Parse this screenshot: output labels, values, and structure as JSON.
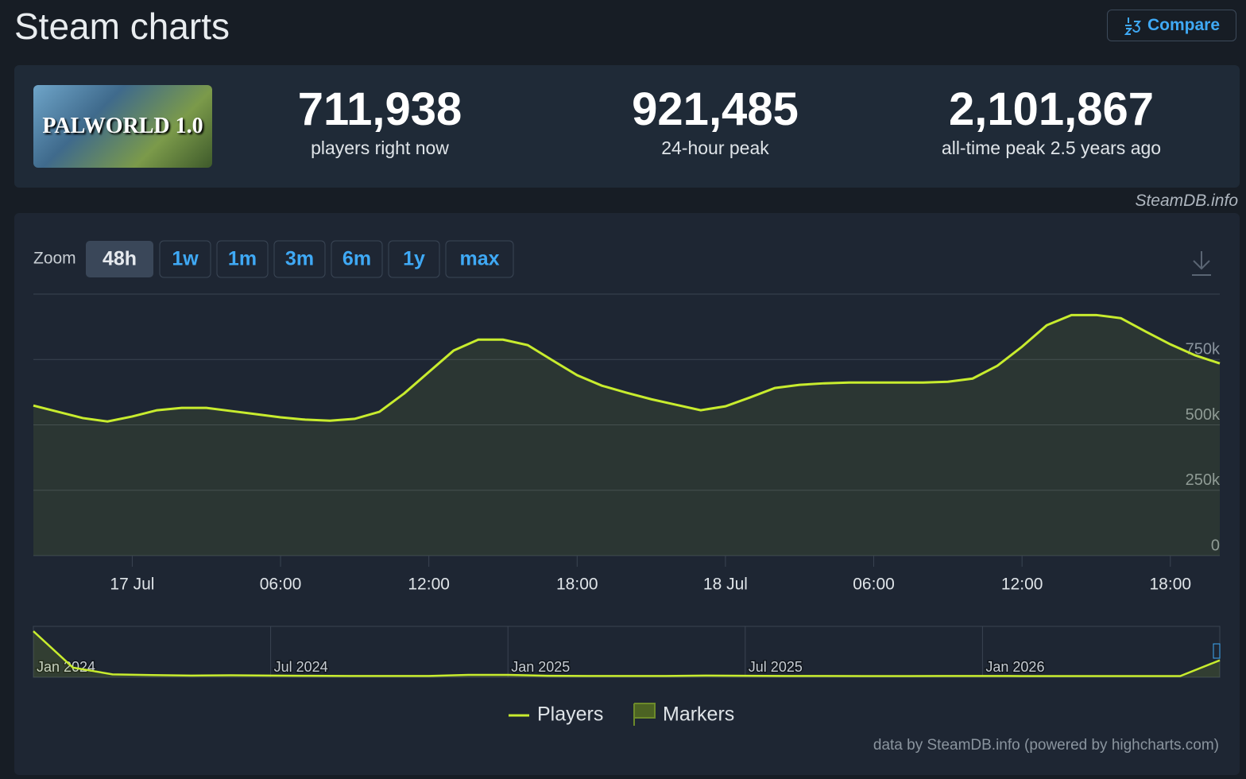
{
  "header": {
    "title": "Steam charts",
    "compare_button": "Compare"
  },
  "game": {
    "image_text": "PALWORLD 1.0"
  },
  "stats": [
    {
      "value": "711,938",
      "label": "players right now"
    },
    {
      "value": "921,485",
      "label": "24-hour peak"
    },
    {
      "value": "2,101,867",
      "label": "all-time peak 2.5 years ago"
    }
  ],
  "credit": "SteamDB.info",
  "zoom": {
    "label": "Zoom",
    "options": [
      "48h",
      "1w",
      "1m",
      "3m",
      "6m",
      "1y",
      "max"
    ],
    "selected": "48h"
  },
  "chart_data": [
    {
      "type": "line",
      "x": [
        -4,
        -3,
        -2,
        -1,
        0,
        1,
        2,
        3,
        4,
        5,
        6,
        7,
        8,
        9,
        10,
        11,
        12,
        13,
        14,
        15,
        16,
        17,
        18,
        19,
        20,
        21,
        22,
        23,
        24,
        25,
        26,
        27,
        28,
        29,
        30,
        31,
        32,
        33,
        34,
        35,
        36,
        37,
        38,
        39,
        40,
        41,
        42,
        43,
        44
      ],
      "series": [
        {
          "name": "Players",
          "color": "#c8ec2e",
          "values": [
            574000,
            550000,
            526000,
            513000,
            532000,
            556000,
            565000,
            565000,
            553000,
            541000,
            529000,
            520000,
            516000,
            523000,
            550000,
            620000,
            702000,
            784000,
            826000,
            826000,
            805000,
            747000,
            690000,
            650000,
            623000,
            598000,
            577000,
            556000,
            571000,
            605000,
            641000,
            653000,
            659000,
            662000,
            662000,
            662000,
            662000,
            665000,
            677000,
            726000,
            799000,
            881000,
            920000,
            920000,
            908000,
            857000,
            808000,
            766000,
            735000
          ]
        }
      ],
      "xlim": [
        -4,
        44
      ],
      "xticks": [
        {
          "value": 0,
          "label": "17 Jul"
        },
        {
          "value": 6,
          "label": "06:00"
        },
        {
          "value": 12,
          "label": "12:00"
        },
        {
          "value": 18,
          "label": "18:00"
        },
        {
          "value": 24,
          "label": "18 Jul"
        },
        {
          "value": 30,
          "label": "06:00"
        },
        {
          "value": 36,
          "label": "12:00"
        },
        {
          "value": 42,
          "label": "18:00"
        }
      ],
      "ylim": [
        0,
        1000000
      ],
      "yticks": [
        0,
        {
          "value": 250000,
          "label": "250k"
        },
        {
          "value": 500000,
          "label": "500k"
        },
        {
          "value": 750000,
          "label": "750k"
        }
      ],
      "grid": true,
      "marker_legend": "Markers",
      "footer": "data by SteamDB.info (powered by highcharts.com)"
    },
    {
      "type": "navigator",
      "categories": [
        "Jan 2024",
        null,
        null,
        null,
        null,
        null,
        "Jul 2024",
        null,
        null,
        null,
        null,
        null,
        "Jan 2025",
        null,
        null,
        null,
        null,
        null,
        "Jul 2025",
        null,
        null,
        null,
        null,
        null,
        "Jan 2026",
        null,
        null,
        null,
        null,
        null,
        null
      ],
      "series": [
        {
          "name": "Players",
          "color": "#c8ec2e",
          "values": [
            1900000,
            400000,
            120000,
            90000,
            70000,
            80000,
            70000,
            60000,
            55000,
            55000,
            55000,
            100000,
            100000,
            60000,
            55000,
            55000,
            55000,
            70000,
            60000,
            55000,
            55000,
            50000,
            50000,
            55000,
            55000,
            50000,
            50000,
            50000,
            50000,
            50000,
            700000
          ]
        }
      ],
      "ylim": [
        0,
        2100000
      ]
    }
  ]
}
